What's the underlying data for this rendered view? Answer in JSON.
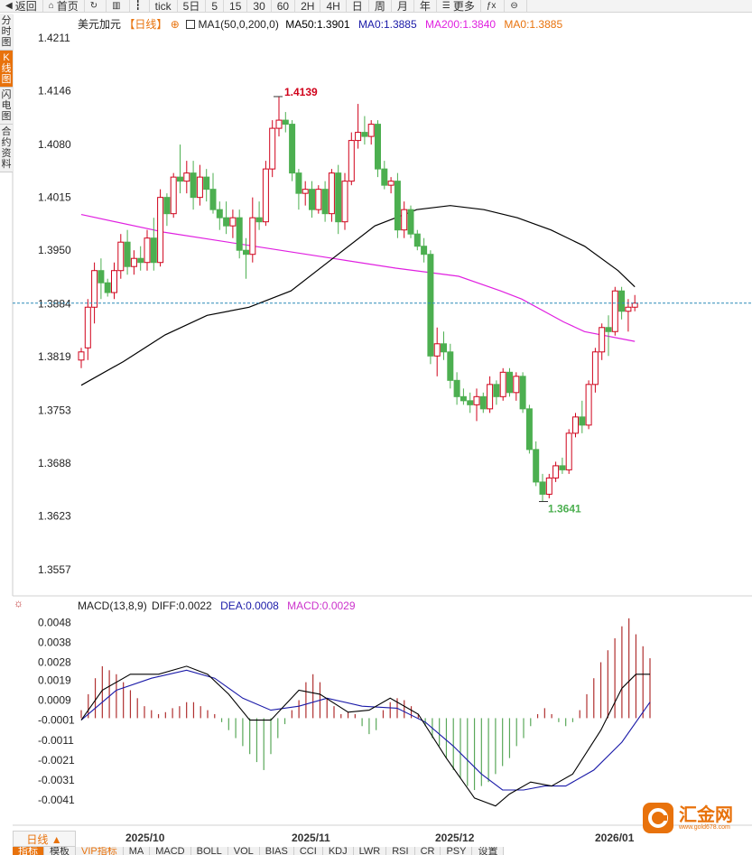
{
  "toolbar": {
    "items": [
      {
        "label": "返回",
        "icon": "back-arrow-icon"
      },
      {
        "label": "首页",
        "icon": "home-icon"
      },
      {
        "label": "",
        "icon": "refresh-icon"
      },
      {
        "label": "",
        "icon": "bar-chart-icon"
      },
      {
        "label": "",
        "icon": "candlestick-icon"
      },
      {
        "label": "tick"
      },
      {
        "label": "5日"
      },
      {
        "label": "5"
      },
      {
        "label": "15"
      },
      {
        "label": "30"
      },
      {
        "label": "60"
      },
      {
        "label": "2H"
      },
      {
        "label": "4H"
      },
      {
        "label": "日"
      },
      {
        "label": "周"
      },
      {
        "label": "月"
      },
      {
        "label": "年"
      },
      {
        "label": "更多",
        "icon": "menu-icon"
      },
      {
        "label": "",
        "icon": "fx-icon"
      },
      {
        "label": "",
        "icon": "zoom-out-icon"
      }
    ]
  },
  "sidebar": {
    "tabs": [
      {
        "label": "分时图",
        "active": false
      },
      {
        "label": "K线图",
        "active": true
      },
      {
        "label": "闪电图",
        "active": false
      },
      {
        "label": "合约资料",
        "active": false
      }
    ]
  },
  "price_legend": {
    "symbol": "美元加元",
    "period": "【日线】",
    "settings_icon": "⊕",
    "ma_name": "MA1(50,0,200,0)",
    "ma50": "MA50:1.3901",
    "ma0a": "MA0:1.3885",
    "ma200": "MA200:1.3840",
    "ma0b": "MA0:1.3885"
  },
  "macd_legend": {
    "name": "MACD(13,8,9)",
    "diff": "DIFF:0.0022",
    "dea": "DEA:0.0008",
    "macd": "MACD:0.0029"
  },
  "bottom": {
    "period_label": "日线 ▲",
    "x_labels": [
      "2025/10",
      "2025/11",
      "2025/12",
      "2026/01"
    ],
    "indicator_tabs": [
      {
        "label": "指标",
        "active": true
      },
      {
        "label": "模板",
        "active": false
      },
      {
        "label": "VIP指标",
        "vip": true
      },
      {
        "label": "MA"
      },
      {
        "label": "MACD"
      },
      {
        "label": "BOLL"
      },
      {
        "label": "VOL"
      },
      {
        "label": "BIAS"
      },
      {
        "label": "CCI"
      },
      {
        "label": "KDJ"
      },
      {
        "label": "LWR"
      },
      {
        "label": "RSI"
      },
      {
        "label": "CR"
      },
      {
        "label": "PSY"
      },
      {
        "label": "设置"
      }
    ]
  },
  "logo": {
    "text": "汇金网",
    "sub": "www.gold678.com"
  },
  "colors": {
    "up": "#d0021b",
    "down": "#4caf50",
    "ma50": "#000000",
    "ma200": "#e020e0",
    "dea": "#1a1aa8",
    "accent": "#e8720c",
    "macd_legend": "#cc33cc",
    "ma0a": "#1a1aa8",
    "ma0b": "#e8720c"
  },
  "chart_data": [
    {
      "type": "candlestick",
      "title": "美元加元【日线】",
      "ylim": [
        1.3525,
        1.424
      ],
      "y_ticks": [
        "1.4211",
        "1.4146",
        "1.4080",
        "1.4015",
        "1.3950",
        "1.3884",
        "1.3819",
        "1.3753",
        "1.3688",
        "1.3623",
        "1.3557"
      ],
      "current_price": 1.3885,
      "high_label": "1.4139",
      "low_label": "1.3641",
      "x_labels": [
        "2025/10",
        "2025/11",
        "2025/12",
        "2026/01"
      ],
      "ohlc": [
        [
          1.3815,
          1.383,
          1.3805,
          1.3825
        ],
        [
          1.383,
          1.389,
          1.3815,
          1.388
        ],
        [
          1.388,
          1.3935,
          1.386,
          1.3925
        ],
        [
          1.3925,
          1.394,
          1.389,
          1.391
        ],
        [
          1.391,
          1.3915,
          1.3893,
          1.3898
        ],
        [
          1.3898,
          1.3935,
          1.389,
          1.3925
        ],
        [
          1.3925,
          1.397,
          1.3915,
          1.396
        ],
        [
          1.396,
          1.3975,
          1.392,
          1.393
        ],
        [
          1.393,
          1.395,
          1.392,
          1.394
        ],
        [
          1.394,
          1.3955,
          1.3925,
          1.3935
        ],
        [
          1.3935,
          1.3975,
          1.3925,
          1.3965
        ],
        [
          1.3965,
          1.399,
          1.3925,
          1.3935
        ],
        [
          1.3935,
          1.4025,
          1.393,
          1.4015
        ],
        [
          1.4015,
          1.402,
          1.398,
          1.3995
        ],
        [
          1.3995,
          1.4045,
          1.399,
          1.404
        ],
        [
          1.404,
          1.408,
          1.402,
          1.4035
        ],
        [
          1.4035,
          1.406,
          1.402,
          1.4045
        ],
        [
          1.4045,
          1.406,
          1.4,
          1.4015
        ],
        [
          1.4015,
          1.4055,
          1.4005,
          1.404
        ],
        [
          1.404,
          1.405,
          1.401,
          1.4025
        ],
        [
          1.4025,
          1.4045,
          1.3995,
          1.4
        ],
        [
          1.4,
          1.401,
          1.3975,
          1.399
        ],
        [
          1.399,
          1.401,
          1.397,
          1.398
        ],
        [
          1.398,
          1.4,
          1.3965,
          1.399
        ],
        [
          1.399,
          1.4,
          1.394,
          1.395
        ],
        [
          1.395,
          1.3965,
          1.3915,
          1.3945
        ],
        [
          1.3945,
          1.4015,
          1.3935,
          1.399
        ],
        [
          1.399,
          1.401,
          1.3975,
          1.3985
        ],
        [
          1.3985,
          1.406,
          1.398,
          1.405
        ],
        [
          1.405,
          1.411,
          1.404,
          1.41
        ],
        [
          1.41,
          1.4139,
          1.409,
          1.411
        ],
        [
          1.411,
          1.412,
          1.4095,
          1.4105
        ],
        [
          1.4105,
          1.411,
          1.4035,
          1.4045
        ],
        [
          1.4045,
          1.405,
          1.4,
          1.402
        ],
        [
          1.402,
          1.4035,
          1.4005,
          1.4025
        ],
        [
          1.4025,
          1.4035,
          1.399,
          1.4
        ],
        [
          1.4,
          1.403,
          1.3995,
          1.4025
        ],
        [
          1.4025,
          1.4035,
          1.3985,
          1.3995
        ],
        [
          1.3995,
          1.405,
          1.3985,
          1.4045
        ],
        [
          1.4045,
          1.4055,
          1.397,
          1.3985
        ],
        [
          1.3985,
          1.4045,
          1.3975,
          1.4035
        ],
        [
          1.4035,
          1.4095,
          1.403,
          1.4085
        ],
        [
          1.4085,
          1.413,
          1.4075,
          1.4095
        ],
        [
          1.4095,
          1.4115,
          1.408,
          1.409
        ],
        [
          1.409,
          1.411,
          1.408,
          1.4105
        ],
        [
          1.4105,
          1.411,
          1.404,
          1.405
        ],
        [
          1.405,
          1.406,
          1.4025,
          1.403
        ],
        [
          1.403,
          1.404,
          1.402,
          1.4035
        ],
        [
          1.4035,
          1.4045,
          1.3965,
          1.3975
        ],
        [
          1.3975,
          1.401,
          1.3965,
          1.4
        ],
        [
          1.4,
          1.4005,
          1.3965,
          1.397
        ],
        [
          1.397,
          1.3975,
          1.395,
          1.3955
        ],
        [
          1.3955,
          1.3965,
          1.3935,
          1.3945
        ],
        [
          1.3945,
          1.395,
          1.381,
          1.382
        ],
        [
          1.382,
          1.3855,
          1.3795,
          1.3835
        ],
        [
          1.3835,
          1.385,
          1.3815,
          1.3825
        ],
        [
          1.3825,
          1.3835,
          1.378,
          1.379
        ],
        [
          1.379,
          1.38,
          1.376,
          1.377
        ],
        [
          1.377,
          1.378,
          1.376,
          1.3765
        ],
        [
          1.3765,
          1.3775,
          1.375,
          1.376
        ],
        [
          1.376,
          1.378,
          1.374,
          1.377
        ],
        [
          1.377,
          1.3775,
          1.375,
          1.3755
        ],
        [
          1.3755,
          1.3795,
          1.375,
          1.3785
        ],
        [
          1.3785,
          1.379,
          1.376,
          1.377
        ],
        [
          1.377,
          1.3805,
          1.3765,
          1.38
        ],
        [
          1.38,
          1.3805,
          1.377,
          1.3775
        ],
        [
          1.3775,
          1.38,
          1.3765,
          1.3795
        ],
        [
          1.3795,
          1.38,
          1.375,
          1.3755
        ],
        [
          1.3755,
          1.376,
          1.37,
          1.3705
        ],
        [
          1.3705,
          1.3715,
          1.366,
          1.3665
        ],
        [
          1.3665,
          1.3675,
          1.3641,
          1.365
        ],
        [
          1.365,
          1.3675,
          1.3645,
          1.367
        ],
        [
          1.367,
          1.369,
          1.3665,
          1.3685
        ],
        [
          1.3685,
          1.3695,
          1.3675,
          1.368
        ],
        [
          1.368,
          1.373,
          1.3675,
          1.3725
        ],
        [
          1.3725,
          1.375,
          1.372,
          1.3745
        ],
        [
          1.3745,
          1.3765,
          1.3725,
          1.3735
        ],
        [
          1.3735,
          1.379,
          1.373,
          1.3785
        ],
        [
          1.3785,
          1.383,
          1.3775,
          1.3825
        ],
        [
          1.3825,
          1.386,
          1.3815,
          1.3855
        ],
        [
          1.3855,
          1.387,
          1.382,
          1.385
        ],
        [
          1.385,
          1.3905,
          1.3845,
          1.39
        ],
        [
          1.39,
          1.3905,
          1.3865,
          1.3875
        ],
        [
          1.3875,
          1.389,
          1.385,
          1.388
        ],
        [
          1.388,
          1.3895,
          1.3875,
          1.3885
        ]
      ],
      "ma50": [
        [
          0,
          1.3784
        ],
        [
          10,
          1.3813
        ],
        [
          20,
          1.3846
        ],
        [
          30,
          1.387
        ],
        [
          40,
          1.388
        ],
        [
          50,
          1.39
        ],
        [
          60,
          1.394
        ],
        [
          70,
          1.398
        ],
        [
          80,
          1.4
        ],
        [
          88,
          1.4005
        ],
        [
          96,
          1.4
        ],
        [
          104,
          1.399
        ],
        [
          112,
          1.3975
        ],
        [
          120,
          1.3955
        ],
        [
          128,
          1.3925
        ],
        [
          132,
          1.3905
        ]
      ],
      "ma200": [
        [
          0,
          1.3994
        ],
        [
          20,
          1.3972
        ],
        [
          40,
          1.3956
        ],
        [
          60,
          1.394
        ],
        [
          75,
          1.3928
        ],
        [
          90,
          1.3918
        ],
        [
          100,
          1.39
        ],
        [
          105,
          1.389
        ],
        [
          115,
          1.3862
        ],
        [
          120,
          1.385
        ],
        [
          132,
          1.3838
        ]
      ]
    },
    {
      "type": "bar",
      "title": "MACD(13,8,9)",
      "ylim": [
        -0.005,
        0.0054
      ],
      "y_ticks": [
        "0.0048",
        "0.0038",
        "0.0028",
        "0.0019",
        "0.0009",
        "-0.0001",
        "-0.0011",
        "-0.0021",
        "-0.0031",
        "-0.0041"
      ],
      "macd_hist": [
        [
          0,
          0.0004
        ],
        [
          1,
          0.0012
        ],
        [
          2,
          0.002
        ],
        [
          3,
          0.0026
        ],
        [
          4,
          0.0024
        ],
        [
          5,
          0.0022
        ],
        [
          6,
          0.0018
        ],
        [
          7,
          0.0014
        ],
        [
          8,
          0.001
        ],
        [
          9,
          0.0006
        ],
        [
          10,
          0.0004
        ],
        [
          11,
          0.0002
        ],
        [
          12,
          0.0003
        ],
        [
          13,
          0.0005
        ],
        [
          14,
          0.0006
        ],
        [
          15,
          0.0008
        ],
        [
          16,
          0.0008
        ],
        [
          17,
          0.0006
        ],
        [
          18,
          0.0004
        ],
        [
          19,
          0.0002
        ],
        [
          20,
          -0.0002
        ],
        [
          21,
          -0.0006
        ],
        [
          22,
          -0.001
        ],
        [
          23,
          -0.0014
        ],
        [
          24,
          -0.0018
        ],
        [
          25,
          -0.0022
        ],
        [
          26,
          -0.0026
        ],
        [
          27,
          -0.0018
        ],
        [
          28,
          -0.001
        ],
        [
          29,
          -0.0003
        ],
        [
          30,
          0.0004
        ],
        [
          31,
          0.0009
        ],
        [
          32,
          0.0018
        ],
        [
          33,
          0.0022
        ],
        [
          34,
          0.0018
        ],
        [
          35,
          0.001
        ],
        [
          36,
          0.0006
        ],
        [
          37,
          0.0002
        ],
        [
          38,
          0.0003
        ],
        [
          39,
          0.0002
        ],
        [
          40,
          -0.0004
        ],
        [
          41,
          -0.0008
        ],
        [
          42,
          -0.0006
        ],
        [
          43,
          0.0004
        ],
        [
          44,
          0.0008
        ],
        [
          45,
          0.001
        ],
        [
          46,
          0.0009
        ],
        [
          47,
          0.0006
        ],
        [
          48,
          0.0002
        ],
        [
          49,
          -0.0004
        ],
        [
          50,
          -0.001
        ],
        [
          51,
          -0.0014
        ],
        [
          52,
          -0.002
        ],
        [
          53,
          -0.0026
        ],
        [
          54,
          -0.003
        ],
        [
          55,
          -0.0034
        ],
        [
          56,
          -0.0036
        ],
        [
          57,
          -0.0034
        ],
        [
          58,
          -0.0032
        ],
        [
          59,
          -0.0028
        ],
        [
          60,
          -0.0024
        ],
        [
          61,
          -0.002
        ],
        [
          62,
          -0.0014
        ],
        [
          63,
          -0.001
        ],
        [
          64,
          -0.0004
        ],
        [
          65,
          0.0002
        ],
        [
          66,
          0.0005
        ],
        [
          67,
          0.0002
        ],
        [
          68,
          -0.0002
        ],
        [
          69,
          -0.0004
        ],
        [
          70,
          -0.0002
        ],
        [
          71,
          0.0004
        ],
        [
          72,
          0.0012
        ],
        [
          73,
          0.002
        ],
        [
          74,
          0.0028
        ],
        [
          75,
          0.0034
        ],
        [
          76,
          0.004
        ],
        [
          77,
          0.0046
        ],
        [
          78,
          0.005
        ],
        [
          79,
          0.0042
        ],
        [
          80,
          0.0036
        ],
        [
          81,
          0.003
        ]
      ],
      "diff": [
        [
          0,
          -0.0001
        ],
        [
          3,
          0.0014
        ],
        [
          7,
          0.0022
        ],
        [
          11,
          0.0022
        ],
        [
          15,
          0.0026
        ],
        [
          18,
          0.0022
        ],
        [
          21,
          0.0012
        ],
        [
          24,
          -0.0001
        ],
        [
          27,
          -0.0001
        ],
        [
          31,
          0.0014
        ],
        [
          34,
          0.0012
        ],
        [
          38,
          0.0003
        ],
        [
          41,
          0.0004
        ],
        [
          44,
          0.001
        ],
        [
          48,
          0.0002
        ],
        [
          52,
          -0.002
        ],
        [
          56,
          -0.004
        ],
        [
          59,
          -0.0044
        ],
        [
          61,
          -0.0038
        ],
        [
          64,
          -0.0032
        ],
        [
          67,
          -0.0034
        ],
        [
          70,
          -0.0028
        ],
        [
          74,
          -0.0006
        ],
        [
          77,
          0.0015
        ],
        [
          79,
          0.0022
        ],
        [
          81,
          0.0022
        ]
      ],
      "dea": [
        [
          0,
          -0.0001
        ],
        [
          5,
          0.0014
        ],
        [
          10,
          0.002
        ],
        [
          15,
          0.0024
        ],
        [
          19,
          0.002
        ],
        [
          23,
          0.001
        ],
        [
          27,
          0.0004
        ],
        [
          31,
          0.0006
        ],
        [
          35,
          0.001
        ],
        [
          40,
          0.0006
        ],
        [
          45,
          0.0005
        ],
        [
          49,
          -0.0002
        ],
        [
          53,
          -0.0014
        ],
        [
          57,
          -0.0028
        ],
        [
          60,
          -0.0036
        ],
        [
          63,
          -0.0036
        ],
        [
          66,
          -0.0034
        ],
        [
          69,
          -0.0034
        ],
        [
          73,
          -0.0026
        ],
        [
          77,
          -0.0012
        ],
        [
          81,
          0.0008
        ]
      ]
    }
  ]
}
